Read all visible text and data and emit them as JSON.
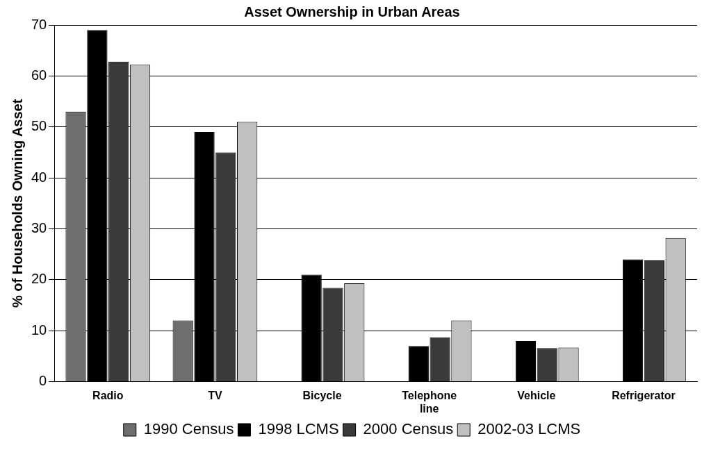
{
  "chart_data": {
    "type": "bar",
    "title": "Asset Ownership in Urban Areas",
    "ylabel": "% of Households Owning Asset",
    "categories": [
      "Radio",
      "TV",
      "Bicycle",
      "Telephone line",
      "Vehicle",
      "Refrigerator"
    ],
    "series": [
      {
        "name": "1990 Census",
        "color": "#6e6e6e",
        "values": [
          53,
          12,
          null,
          null,
          null,
          null
        ]
      },
      {
        "name": "1998 LCMS",
        "color": "#000000",
        "values": [
          69,
          49,
          21,
          7,
          8,
          24
        ]
      },
      {
        "name": "2000 Census",
        "color": "#3a3a3a",
        "values": [
          62.8,
          45,
          18.4,
          8.7,
          6.6,
          23.8
        ]
      },
      {
        "name": "2002-03 LCMS",
        "color": "#c0c0c0",
        "values": [
          62.2,
          51,
          19.3,
          12,
          6.7,
          28.2
        ]
      }
    ],
    "ylim": [
      0,
      70
    ],
    "yticks": [
      0,
      10,
      20,
      30,
      40,
      50,
      60,
      70
    ],
    "grid": "y",
    "legend": "bottom"
  }
}
